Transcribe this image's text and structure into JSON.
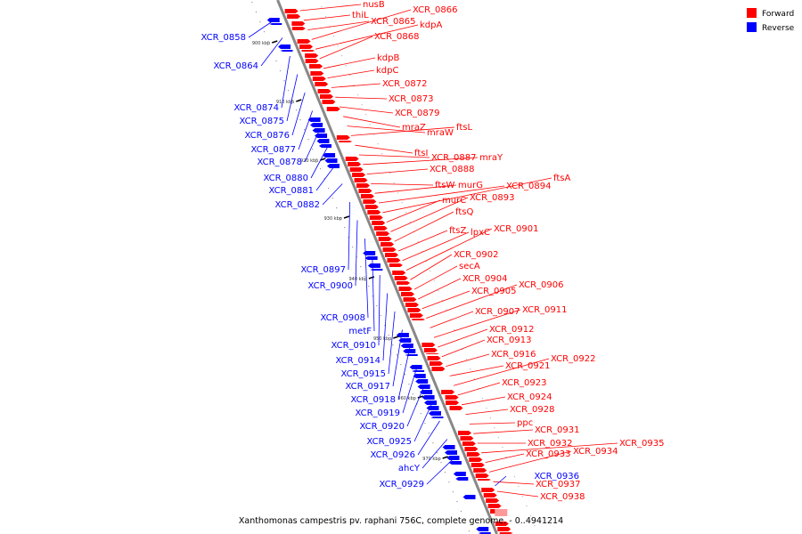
{
  "caption": "Xanthomonas campestris pv. raphani 756C, complete genome. - 0..4941214",
  "legend": [
    {
      "label": "Forward",
      "color": "#ff0000"
    },
    {
      "label": "Reverse",
      "color": "#0000ff"
    }
  ],
  "colors": {
    "forward": "#ff0000",
    "reverse": "#0000ff",
    "backbone": "#888888",
    "faint": "#ff9999"
  },
  "ticks": [
    "900 kbp",
    "910 kbp",
    "920 kbp",
    "930 kbp",
    "940 kbp",
    "950 kbp",
    "960 kbp",
    "970 kbp"
  ],
  "forward_genes": [
    "nusB",
    "thiL",
    "XCR_0865",
    "XCR_0866",
    "kdpA",
    "XCR_0868",
    "kdpB",
    "kdpC",
    "XCR_0872",
    "XCR_0873",
    "XCR_0879",
    "mraZ",
    "mraW",
    "ftsL",
    "ftsI",
    "XCR_0887",
    "mraY",
    "XCR_0888",
    "ftsW",
    "murG",
    "XCR_0894",
    "ftsA",
    "murC",
    "XCR_0893",
    "ftsQ",
    "ftsZ",
    "lpxC",
    "XCR_0901",
    "XCR_0902",
    "secA",
    "XCR_0904",
    "XCR_0905",
    "XCR_0906",
    "XCR_0907",
    "XCR_0911",
    "XCR_0912",
    "XCR_0913",
    "XCR_0916",
    "XCR_0921",
    "XCR_0922",
    "XCR_0923",
    "XCR_0924",
    "XCR_0928",
    "ppc",
    "XCR_0931",
    "XCR_0932",
    "XCR_0935",
    "XCR_0933",
    "XCR_0934",
    "XCR_0937",
    "XCR_0938"
  ],
  "reverse_genes": [
    "XCR_0858",
    "XCR_0864",
    "XCR_0874",
    "XCR_0875",
    "XCR_0876",
    "XCR_0877",
    "XCR_0878",
    "XCR_0880",
    "XCR_0881",
    "XCR_0882",
    "XCR_0897",
    "XCR_0900",
    "XCR_0908",
    "metF",
    "XCR_0910",
    "XCR_0914",
    "XCR_0915",
    "XCR_0917",
    "XCR_0918",
    "XCR_0919",
    "XCR_0920",
    "XCR_0925",
    "XCR_0926",
    "ahcY",
    "XCR_0929",
    "XCR_0936"
  ]
}
